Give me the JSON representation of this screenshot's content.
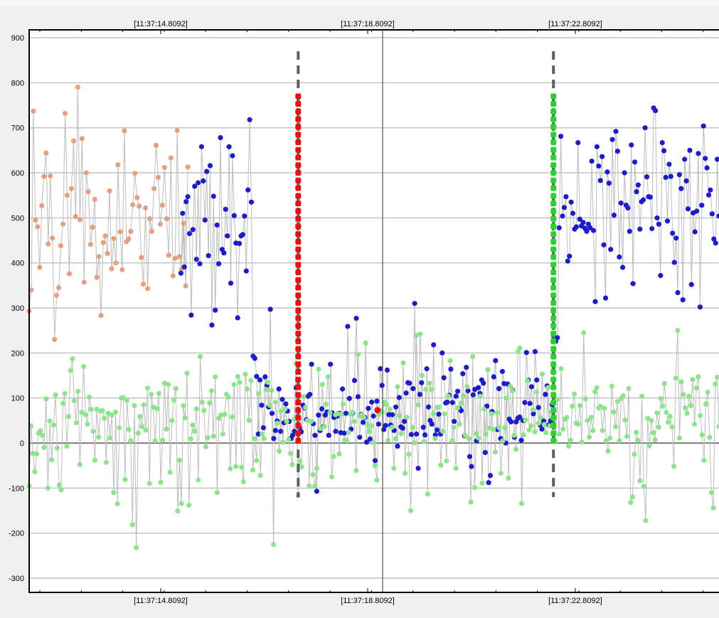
{
  "chart_data": {
    "type": "scatter",
    "title": "",
    "xlabel": "",
    "ylabel": "",
    "ylim": [
      -330,
      920
    ],
    "y_ticks": [
      900,
      800,
      700,
      600,
      500,
      400,
      300,
      200,
      100,
      0,
      -100,
      -200,
      -300
    ],
    "x_tick_labels": [
      "[11:37:14.8092]",
      "[11:37:18.8092]",
      "[11:37:22.8092]"
    ],
    "cursor_x_label": "[11:37:18.8092]",
    "grid": true,
    "legend": "none",
    "colors": {
      "orange": "#e2a183",
      "blue": "#1c1cc8",
      "green": "#8fe38f",
      "red_marker": "#e81010",
      "green_marker": "#2dd12d",
      "line": "#bdbdbd",
      "zero_line": "#555555",
      "cursor_line": "#333333",
      "dash_line": "#606060"
    },
    "series": [
      {
        "color_key": "orange",
        "values": [
          293,
          340,
          737,
          495,
          480,
          390,
          527,
          592,
          644,
          442,
          593,
          455,
          230,
          328,
          345,
          438,
          486,
          732,
          550,
          376,
          565,
          671,
          503,
          790,
          496,
          676,
          357,
          600,
          558,
          441,
          479,
          541,
          368,
          414,
          283,
          445,
          460,
          421,
          560,
          387,
          454,
          400,
          618,
          469,
          385,
          693,
          447,
          453,
          470,
          529,
          599,
          545,
          526,
          412,
          353,
          522,
          343,
          498,
          470,
          565,
          661,
          590,
          486,
          528,
          612,
          498,
          417,
          633,
          371,
          410,
          694,
          414,
          386,
          488,
          349,
          613
        ]
      },
      {
        "color_key": "blue",
        "values": [
          377,
          510,
          391,
          536,
          547,
          465,
          284,
          474,
          570,
          408,
          578,
          398,
          658,
          582,
          495,
          603,
          416,
          616,
          262,
          548,
          295,
          484,
          398,
          678,
          430,
          422,
          519,
          460,
          658,
          355,
          638,
          505,
          444,
          278,
          443,
          460,
          463,
          504,
          382,
          562,
          718,
          535,
          193,
          188,
          148,
          20,
          140,
          84,
          34,
          147,
          128,
          80,
          297,
          66,
          10,
          28,
          49,
          120,
          26,
          97,
          45,
          87,
          71,
          48,
          10,
          17,
          26,
          123,
          59,
          34,
          25,
          84,
          78,
          52,
          104,
          108,
          175,
          43,
          17,
          -107,
          62,
          28,
          76,
          37,
          62,
          69,
          17,
          175,
          67,
          57,
          26,
          60,
          66,
          23,
          120,
          22,
          66,
          259,
          99,
          31,
          67,
          139,
          277,
          103,
          13,
          64,
          46,
          57,
          2,
          77,
          9,
          91,
          60,
          -39,
          93,
          42,
          165,
          128,
          30,
          39,
          162,
          63,
          40,
          63,
          28,
          80,
          -7,
          101,
          36,
          33,
          48,
          111,
          134,
          133,
          19,
          121,
          310,
          20,
          -56,
          108,
          134,
          35,
          18,
          165,
          80,
          50,
          42,
          218,
          18,
          29,
          64,
          20,
          200,
          145,
          89,
          91,
          106,
          164,
          90,
          48,
          104,
          115,
          77,
          72,
          154,
          16,
          168,
          116,
          -30,
          -52,
          107,
          119,
          5,
          123,
          110,
          140,
          133,
          -21,
          82,
          -88,
          -72,
          70,
          147,
          183,
          30,
          121,
          10,
          159,
          132,
          0,
          131,
          53,
          47,
          117,
          13,
          47,
          55,
          58,
          6,
          50,
          90,
          201,
          140,
          88,
          125,
          65,
          203,
          140,
          79,
          40,
          31,
          49,
          108,
          127,
          40,
          49,
          85,
          236,
          226,
          234,
          478,
          681,
          504,
          523,
          547,
          404,
          415,
          535,
          510,
          475,
          480,
          667,
          497,
          482,
          490,
          477,
          470,
          486,
          478,
          626,
          472,
          314,
          658,
          615,
          583,
          636,
          440,
          322,
          602,
          577,
          430,
          674,
          506,
          692,
          648,
          413,
          533,
          390,
          600,
          528,
          522,
          470,
          662,
          354,
          624,
          558,
          573,
          475,
          536,
          540,
          700,
          591,
          547,
          546,
          476,
          744,
          738,
          500,
          486,
          372,
          667,
          649,
          590,
          493,
          619,
          592,
          466,
          401,
          455,
          334,
          596,
          565,
          318,
          630,
          582,
          520,
          650,
          352,
          511,
          469,
          515,
          643,
          302,
          528,
          704,
          632,
          611,
          551,
          562,
          509,
          453,
          444,
          630,
          504
        ]
      },
      {
        "color_key": "green",
        "values": [
          -95,
          38,
          -23,
          -64,
          -24,
          22,
          27,
          17,
          -10,
          98,
          -100,
          49,
          -37,
          40,
          107,
          -11,
          -93,
          -104,
          88,
          110,
          -7,
          59,
          161,
          187,
          94,
          45,
          115,
          -48,
          68,
          170,
          63,
          42,
          102,
          75,
          26,
          -38,
          75,
          13,
          71,
          72,
          55,
          -43,
          66,
          11,
          62,
          -110,
          69,
          -135,
          34,
          100,
          101,
          -81,
          95,
          30,
          5,
          -181,
          83,
          -232,
          22,
          59,
          37,
          85,
          29,
          122,
          -90,
          108,
          80,
          5,
          76,
          110,
          -87,
          6,
          133,
          31,
          130,
          -65,
          50,
          95,
          121,
          -151,
          -38,
          -134,
          83,
          56,
          155,
          -138,
          9,
          40,
          26,
          76,
          -82,
          192,
          91,
          72,
          -8,
          12,
          89,
          116,
          15,
          147,
          -110,
          55,
          62,
          20,
          64,
          108,
          102,
          -57,
          58,
          130,
          -52,
          148,
          135,
          -54,
          -86,
          153,
          120,
          50,
          139,
          -60,
          10,
          -39,
          110,
          -72,
          20,
          10,
          119,
          135,
          84,
          117,
          -225,
          91,
          44,
          -18,
          71,
          2,
          75,
          48,
          8,
          -23,
          -48,
          53,
          177,
          -117,
          -40,
          -53,
          103,
          79,
          50,
          -95,
          48,
          -70,
          -96,
          -56,
          164,
          32,
          130,
          37,
          86,
          147,
          67,
          -75,
          -30,
          63,
          65,
          -24,
          64,
          87,
          7,
          5,
          24,
          64,
          68,
          48,
          -61,
          197,
          60,
          63,
          57,
          222,
          41,
          26,
          38,
          1,
          -50,
          -82,
          64,
          72,
          68,
          91,
          85,
          6,
          75,
          35,
          -56,
          10,
          125,
          61,
          21,
          178,
          -67,
          57,
          -25,
          -150,
          35,
          1,
          239,
          85,
          242,
          150,
          3,
          119,
          -113,
          133,
          119,
          65,
          10,
          79,
          80,
          -49,
          26,
          65,
          -40,
          104,
          183,
          5,
          35,
          -56,
          78,
          42,
          89,
          105,
          17,
          125,
          10,
          -131,
          192,
          -99,
          21,
          11,
          104,
          -89,
          75,
          20,
          163,
          33,
          65,
          30,
          -20,
          67,
          34,
          -67,
          5,
          34,
          100,
          -78,
          126,
          116,
          17,
          -14,
          203,
          211,
          -134,
          18,
          51,
          139,
          29,
          38,
          74,
          25,
          113,
          44,
          57,
          153,
          41,
          23,
          123,
          38,
          68,
          168,
          4,
          97,
          20,
          165,
          31,
          53,
          57,
          -7,
          6,
          82,
          109,
          44,
          42,
          83,
          2,
          245,
          98,
          50,
          13,
          57,
          28,
          114,
          123,
          78,
          81,
          28,
          77,
          5,
          -18,
          11,
          126,
          69,
          36,
          92,
          5,
          99,
          105,
          51,
          15,
          121,
          -132,
          -120,
          -25,
          24,
          6,
          -84,
          104,
          -96,
          -172,
          55,
          -6,
          50,
          23,
          7,
          67,
          35,
          99,
          82,
          132,
          68,
          46,
          59,
          36,
          -52,
          144,
          250,
          11,
          136,
          108,
          78,
          66,
          104,
          83,
          141,
          42,
          122,
          147,
          61,
          18,
          -38,
          87,
          113,
          13,
          -110,
          -144,
          131,
          146,
          37
        ]
      }
    ],
    "markers": [
      {
        "color_key": "red_marker",
        "x_fraction": 0.39,
        "y_top": 770,
        "y_bottom": 0,
        "dash_top": 870,
        "dash_bottom": -120
      },
      {
        "color_key": "green_marker",
        "x_fraction": 0.76,
        "y_top": 770,
        "y_bottom": 0,
        "dash_top": 870,
        "dash_bottom": -120
      }
    ],
    "highlight_point": {
      "color_key": "red_marker",
      "x_fraction": 0.505,
      "y": 73
    }
  }
}
